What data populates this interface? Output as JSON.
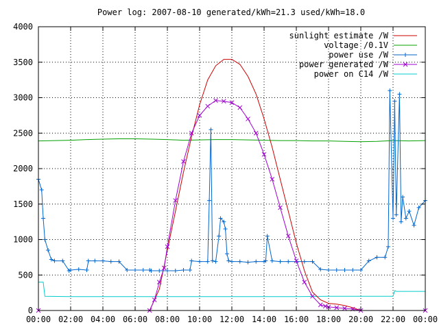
{
  "chart_data": {
    "type": "line",
    "title": "Power log: 2007-08-10 generated/kWh=21.3 used/kWh=18.0",
    "xlabel": "",
    "ylabel": "",
    "xlim": [
      0,
      24
    ],
    "ylim": [
      0,
      4000
    ],
    "grid": true,
    "legend_position": "top-right",
    "x_tick_labels": [
      "00:00",
      "02:00",
      "04:00",
      "06:00",
      "08:00",
      "10:00",
      "12:00",
      "14:00",
      "16:00",
      "18:00",
      "20:00",
      "22:00",
      "00:00"
    ],
    "y_tick_labels": [
      "0",
      "500",
      "1000",
      "1500",
      "2000",
      "2500",
      "3000",
      "3500",
      "4000"
    ],
    "series": [
      {
        "name": "sunlight estimate /W",
        "color": "#cc0000",
        "style": "line",
        "x": [
          0,
          6.9,
          7.5,
          8.0,
          8.5,
          9.0,
          9.5,
          10.0,
          10.5,
          11.0,
          11.5,
          12.0,
          12.5,
          13.0,
          13.5,
          14.0,
          14.5,
          15.0,
          15.5,
          16.0,
          16.5,
          17.0,
          17.5,
          18.0,
          18.5,
          19.0,
          19.5,
          20.0,
          24.0
        ],
        "values": [
          0,
          0,
          300,
          850,
          1400,
          1950,
          2450,
          2900,
          3250,
          3450,
          3540,
          3540,
          3470,
          3300,
          3050,
          2700,
          2300,
          1850,
          1400,
          950,
          560,
          260,
          150,
          100,
          90,
          70,
          40,
          0,
          0
        ]
      },
      {
        "name": "voltage /0.1V",
        "color": "#00a000",
        "style": "line",
        "x": [
          0,
          1,
          2,
          3,
          4,
          5,
          6,
          7,
          8,
          9,
          10,
          11,
          12,
          13,
          14,
          15,
          16,
          17,
          18,
          19,
          20,
          21,
          22,
          23,
          24
        ],
        "values": [
          2390,
          2395,
          2400,
          2410,
          2415,
          2420,
          2420,
          2415,
          2410,
          2400,
          2405,
          2410,
          2410,
          2405,
          2400,
          2395,
          2395,
          2390,
          2390,
          2385,
          2380,
          2385,
          2395,
          2390,
          2395
        ]
      },
      {
        "name": "power use /W",
        "color": "#0066cc",
        "style": "points-line",
        "x": [
          0,
          0.2,
          0.3,
          0.4,
          0.6,
          0.8,
          1.0,
          1.5,
          1.9,
          2.0,
          2.5,
          3.0,
          3.1,
          3.5,
          4.0,
          4.5,
          5.0,
          5.5,
          6.0,
          6.5,
          6.9,
          7.0,
          7.5,
          8.0,
          8.5,
          9.0,
          9.4,
          9.5,
          10.0,
          10.5,
          10.6,
          10.7,
          10.8,
          11.0,
          11.2,
          11.3,
          11.5,
          11.6,
          11.7,
          11.8,
          12.0,
          12.5,
          13.0,
          13.5,
          14.0,
          14.1,
          14.2,
          14.5,
          15.0,
          15.5,
          16.0,
          16.5,
          17.0,
          17.5,
          18.0,
          18.5,
          19.0,
          19.5,
          20.0,
          20.5,
          21.0,
          21.5,
          21.7,
          21.8,
          22.0,
          22.1,
          22.2,
          22.4,
          22.5,
          22.6,
          22.8,
          23.0,
          23.3,
          23.6,
          24.0
        ],
        "values": [
          1850,
          1700,
          1300,
          1000,
          850,
          720,
          700,
          700,
          560,
          570,
          580,
          570,
          700,
          700,
          700,
          690,
          690,
          570,
          570,
          570,
          570,
          560,
          560,
          560,
          560,
          570,
          570,
          700,
          690,
          690,
          1550,
          2550,
          700,
          690,
          1050,
          1300,
          1250,
          1150,
          800,
          700,
          690,
          690,
          680,
          690,
          690,
          700,
          1050,
          700,
          690,
          690,
          690,
          690,
          690,
          580,
          570,
          570,
          570,
          570,
          570,
          700,
          750,
          750,
          900,
          3100,
          1300,
          2950,
          1350,
          3050,
          1250,
          1600,
          1300,
          1400,
          1200,
          1450,
          1550
        ]
      },
      {
        "name": "power generated /W",
        "color": "#a000d0",
        "style": "points-line",
        "x": [
          0,
          6.9,
          7.2,
          7.5,
          7.8,
          8.0,
          8.5,
          9.0,
          9.5,
          10.0,
          10.5,
          11.0,
          11.5,
          12.0,
          12.5,
          13.0,
          13.5,
          14.0,
          14.5,
          15.0,
          15.5,
          16.0,
          16.5,
          17.0,
          17.5,
          17.8,
          18.0,
          18.5,
          19.0,
          19.5,
          20.0,
          24.0
        ],
        "values": [
          0,
          0,
          150,
          400,
          600,
          900,
          1550,
          2100,
          2500,
          2750,
          2880,
          2960,
          2950,
          2930,
          2860,
          2700,
          2500,
          2200,
          1850,
          1450,
          1050,
          700,
          400,
          200,
          80,
          60,
          50,
          40,
          30,
          20,
          0,
          0
        ]
      },
      {
        "name": "power on C14 /W",
        "color": "#00cccc",
        "style": "line",
        "x": [
          0,
          0.3,
          0.4,
          2,
          4,
          6,
          8,
          10,
          12,
          14,
          16,
          18,
          20,
          21,
          22,
          22.1,
          22.2,
          24
        ],
        "values": [
          400,
          400,
          200,
          195,
          195,
          195,
          195,
          195,
          195,
          195,
          195,
          200,
          200,
          200,
          200,
          280,
          270,
          270
        ]
      }
    ]
  }
}
